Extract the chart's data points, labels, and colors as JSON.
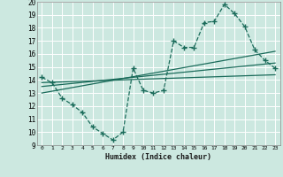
{
  "xlabel": "Humidex (Indice chaleur)",
  "bg_color": "#cce8e0",
  "grid_color": "#ffffff",
  "line_color": "#1a6b5a",
  "xlim": [
    -0.5,
    23.5
  ],
  "ylim": [
    9,
    20
  ],
  "xticks": [
    0,
    1,
    2,
    3,
    4,
    5,
    6,
    7,
    8,
    9,
    10,
    11,
    12,
    13,
    14,
    15,
    16,
    17,
    18,
    19,
    20,
    21,
    22,
    23
  ],
  "yticks": [
    9,
    10,
    11,
    12,
    13,
    14,
    15,
    16,
    17,
    18,
    19,
    20
  ],
  "main_series": {
    "x": [
      0,
      1,
      2,
      3,
      4,
      5,
      6,
      7,
      8,
      9,
      10,
      11,
      12,
      13,
      14,
      15,
      16,
      17,
      18,
      19,
      20,
      21,
      22,
      23
    ],
    "y": [
      14.2,
      13.8,
      12.6,
      12.1,
      11.5,
      10.4,
      9.9,
      9.4,
      10.0,
      14.9,
      13.2,
      13.0,
      13.2,
      17.0,
      16.5,
      16.5,
      18.4,
      18.5,
      19.8,
      19.1,
      18.1,
      16.3,
      15.5,
      14.9
    ]
  },
  "linear_series": [
    {
      "x": [
        0,
        23
      ],
      "y": [
        13.0,
        16.2
      ]
    },
    {
      "x": [
        0,
        23
      ],
      "y": [
        13.5,
        15.3
      ]
    },
    {
      "x": [
        0,
        23
      ],
      "y": [
        13.8,
        14.4
      ]
    }
  ]
}
